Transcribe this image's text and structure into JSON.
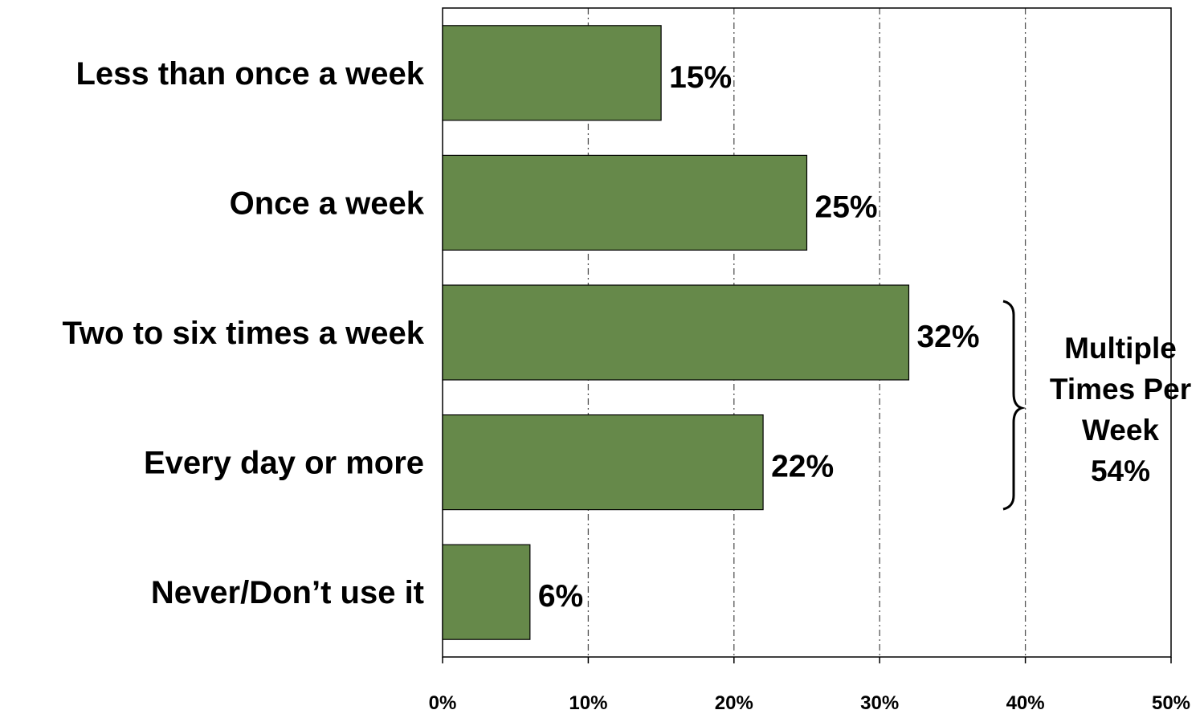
{
  "chart_data": {
    "type": "bar",
    "orientation": "horizontal",
    "categories": [
      "Less than once a week",
      "Once a week",
      "Two to six times a week",
      "Every day or more",
      "Never/Don’t use it"
    ],
    "values": [
      15,
      25,
      32,
      22,
      6
    ],
    "value_labels": [
      "15%",
      "25%",
      "32%",
      "22%",
      "6%"
    ],
    "xlim": [
      0,
      50
    ],
    "xticks": [
      0,
      10,
      20,
      30,
      40,
      50
    ],
    "xtick_labels": [
      "0%",
      "10%",
      "20%",
      "30%",
      "40%",
      "50%"
    ],
    "grid": "vertical dash-dot",
    "bar_color": "#66894a",
    "bracket_annotation": {
      "spans_categories": [
        "Two to six times a week",
        "Every day or more"
      ],
      "lines": [
        "Multiple",
        "Times Per",
        "Week",
        "54%"
      ]
    }
  }
}
